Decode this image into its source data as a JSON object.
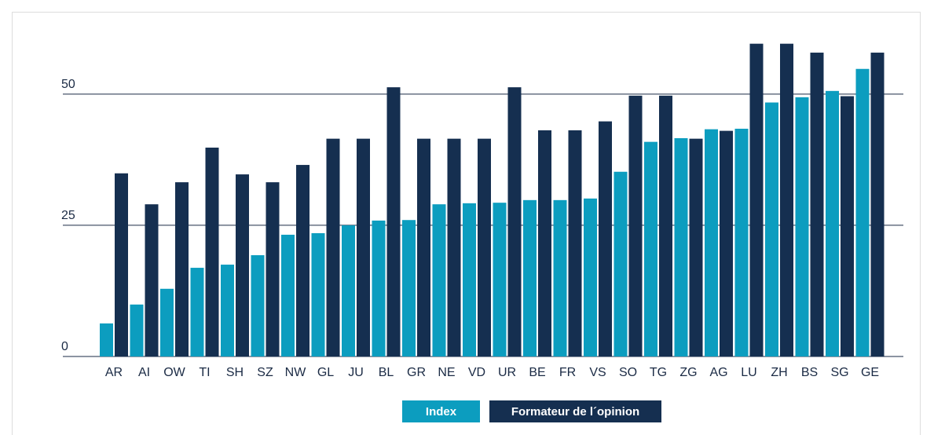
{
  "chart_data": {
    "type": "bar",
    "categories": [
      "AR",
      "AI",
      "OW",
      "TI",
      "SH",
      "SZ",
      "NW",
      "GL",
      "JU",
      "BL",
      "GR",
      "NE",
      "VD",
      "UR",
      "BE",
      "FR",
      "VS",
      "SO",
      "TG",
      "ZG",
      "AG",
      "LU",
      "ZH",
      "BS",
      "SG",
      "GE"
    ],
    "series": [
      {
        "name": "Index",
        "color": "#0c9dbf",
        "values": [
          6.3,
          9.9,
          12.9,
          16.9,
          17.5,
          19.3,
          23.2,
          23.5,
          25,
          25.9,
          26,
          29,
          29.2,
          29.3,
          29.8,
          29.8,
          30.1,
          35.2,
          40.9,
          41.6,
          43.3,
          43.4,
          48.4,
          49.4,
          50.6,
          54.8
        ]
      },
      {
        "name": "Formateur de l´opinion",
        "color": "#152f50",
        "values": [
          34.9,
          29,
          33.2,
          39.8,
          34.7,
          33.2,
          36.5,
          41.5,
          41.5,
          51.3,
          41.5,
          41.5,
          41.5,
          51.3,
          43.1,
          43.1,
          44.8,
          49.7,
          49.7,
          41.5,
          43,
          59.6,
          59.6,
          57.9,
          49.6,
          57.9
        ]
      }
    ],
    "ylim": [
      0,
      60
    ],
    "yticks": [
      0,
      25,
      50
    ],
    "grid": true,
    "legend": "bottom"
  }
}
